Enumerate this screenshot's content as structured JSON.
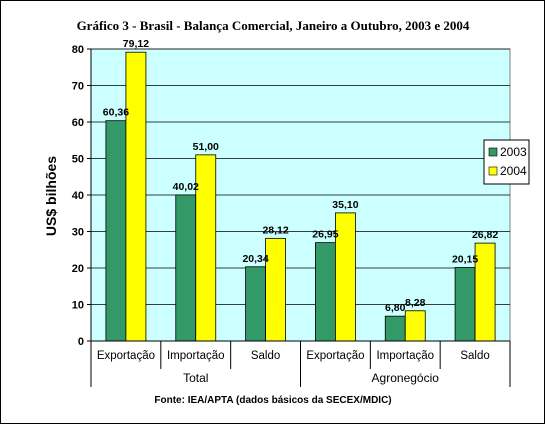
{
  "chart_data": {
    "type": "bar",
    "title": "Gráfico 3 - Brasil - Balança Comercial, Janeiro a Outubro, 2003 e 2004",
    "ylabel": "US$ bilhões",
    "ylim": [
      0,
      80
    ],
    "yticks": [
      0,
      10,
      20,
      30,
      40,
      50,
      60,
      70,
      80
    ],
    "grid": true,
    "legend_position": "right",
    "categories": [
      "Exportação",
      "Importação",
      "Saldo",
      "Exportação",
      "Importação",
      "Saldo"
    ],
    "groups": [
      {
        "label": "Total",
        "span": 3
      },
      {
        "label": "Agronegócio",
        "span": 3
      }
    ],
    "series": [
      {
        "name": "2003",
        "color": "#339966",
        "values": [
          60.36,
          40.02,
          20.34,
          26.95,
          6.8,
          20.15
        ],
        "labels": [
          "60,36",
          "40,02",
          "20,34",
          "26,95",
          "6,80",
          "20,15"
        ]
      },
      {
        "name": "2004",
        "color": "#ffff00",
        "values": [
          79.12,
          51.0,
          28.12,
          35.1,
          8.28,
          26.82
        ],
        "labels": [
          "79,12",
          "51,00",
          "28,12",
          "35,10",
          "8,28",
          "26,82"
        ]
      }
    ],
    "plot_background": "#ccffff",
    "source": "Fonte: IEA/APTA (dados básicos da SECEX/MDIC)"
  }
}
